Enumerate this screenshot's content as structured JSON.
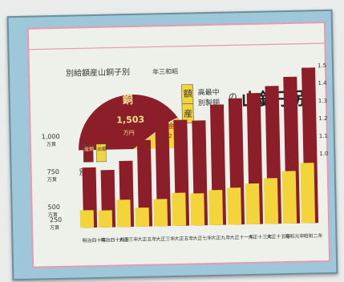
{
  "chart_data": {
    "type": "bar",
    "title_main": "山銅子別",
    "title_prefix": "額",
    "title_prefix_2": "産",
    "title_sub_1": "高最中",
    "title_sub_2": "別製銅",
    "title_particle": "の",
    "inset_title": "別給額産山銅子別",
    "inset_period": "年三和昭",
    "inset_chart": {
      "type": "pie",
      "main_label": "銅",
      "main_value": "1,503",
      "main_unit": "万円",
      "minor_label": "金",
      "minor_value": "12",
      "colors": [
        "#8b1e28",
        "#f3d43a",
        "#f0f0e6"
      ]
    },
    "legend": {
      "title": "別色",
      "items": [
        {
          "label": "産銅",
          "color": "#8b1e28"
        },
        {
          "label": "出額",
          "color": "#f3d43a"
        }
      ]
    },
    "y_ticks": [
      {
        "value": "1,000",
        "unit": "万貫",
        "v": 1000
      },
      {
        "value": "750",
        "unit": "万貫",
        "v": 750
      },
      {
        "value": "500",
        "unit": "万貫",
        "v": 500
      },
      {
        "value": "250",
        "unit": "万貫",
        "v": 250
      }
    ],
    "y_ticks_right": [
      "1.5",
      "1.4",
      "1.3",
      "1.2",
      "1.1",
      "1.0"
    ],
    "categories": [
      "明治四十年",
      "明治四十四年",
      "大正三年",
      "大正五年",
      "大正三年",
      "大正五年",
      "大正七年",
      "大正九年",
      "大正十一年",
      "大正十三年",
      "大正十五年",
      "昭和元年",
      "昭和二年"
    ],
    "series": [
      {
        "color": "#8b1e28",
        "values": [
          620,
          590,
          680,
          890,
          1110,
          1090,
          1080,
          1240,
          1300,
          1350,
          1420,
          1510,
          1600
        ]
      },
      {
        "color": "#f3d43a",
        "values": [
          180,
          175,
          280,
          195,
          280,
          340,
          330,
          360,
          380,
          420,
          470,
          540,
          620
        ]
      }
    ],
    "ylim": [
      0,
      1650
    ]
  }
}
